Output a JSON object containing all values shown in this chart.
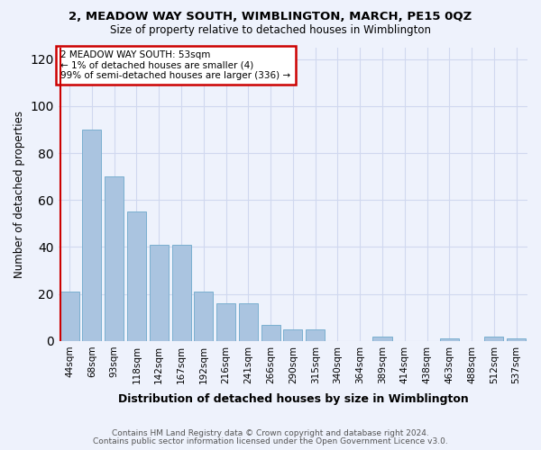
{
  "title": "2, MEADOW WAY SOUTH, WIMBLINGTON, MARCH, PE15 0QZ",
  "subtitle": "Size of property relative to detached houses in Wimblington",
  "xlabel": "Distribution of detached houses by size in Wimblington",
  "ylabel": "Number of detached properties",
  "footnote1": "Contains HM Land Registry data © Crown copyright and database right 2024.",
  "footnote2": "Contains public sector information licensed under the Open Government Licence v3.0.",
  "annotation_title": "2 MEADOW WAY SOUTH: 53sqm",
  "annotation_line2": "← 1% of detached houses are smaller (4)",
  "annotation_line3": "99% of semi-detached houses are larger (336) →",
  "bar_labels": [
    "44sqm",
    "68sqm",
    "93sqm",
    "118sqm",
    "142sqm",
    "167sqm",
    "192sqm",
    "216sqm",
    "241sqm",
    "266sqm",
    "290sqm",
    "315sqm",
    "340sqm",
    "364sqm",
    "389sqm",
    "414sqm",
    "438sqm",
    "463sqm",
    "488sqm",
    "512sqm",
    "537sqm"
  ],
  "bar_values": [
    21,
    90,
    70,
    55,
    41,
    41,
    21,
    16,
    16,
    7,
    5,
    5,
    0,
    0,
    2,
    0,
    0,
    1,
    0,
    2,
    1
  ],
  "bar_color": "#aac4e0",
  "bar_edge_color": "#7aafd0",
  "highlight_bar_index": 0,
  "highlight_color": "#cc0000",
  "annotation_box_color": "#cc0000",
  "background_color": "#eef2fc",
  "grid_color": "#d0d8ef",
  "ylim": [
    0,
    125
  ],
  "yticks": [
    0,
    20,
    40,
    60,
    80,
    100,
    120
  ]
}
